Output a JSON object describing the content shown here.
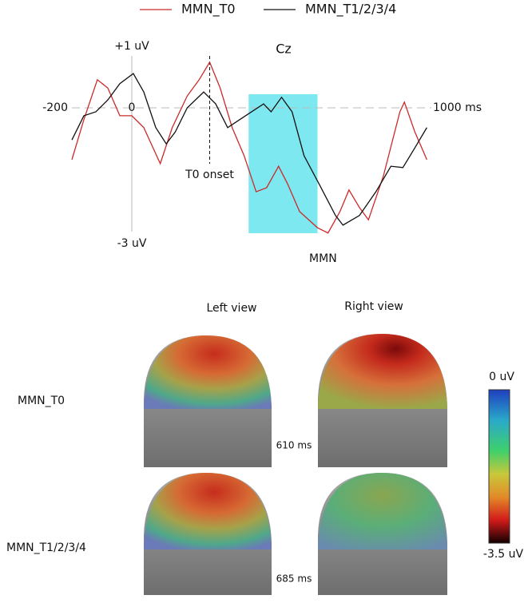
{
  "chart_data": {
    "type": "line",
    "title": "Cz",
    "series": [
      {
        "name": "MMN_T0",
        "color": "#cc2a2a",
        "x": [
          -200,
          -160,
          -115,
          -80,
          -40,
          0,
          40,
          95,
          135,
          185,
          225,
          260,
          295,
          335,
          375,
          415,
          450,
          490,
          520,
          560,
          620,
          655,
          695,
          725,
          760,
          790,
          840,
          895,
          910,
          945,
          985
        ],
        "values": [
          -1.18,
          -0.27,
          0.64,
          0.45,
          -0.18,
          -0.18,
          -0.45,
          -1.27,
          -0.45,
          0.27,
          0.64,
          1.04,
          0.45,
          -0.45,
          -1.09,
          -1.91,
          -1.82,
          -1.33,
          -1.73,
          -2.36,
          -2.73,
          -2.85,
          -2.36,
          -1.87,
          -2.27,
          -2.55,
          -1.55,
          -0.09,
          0.13,
          -0.55,
          -1.18
        ]
      },
      {
        "name": "MMN_T1/2/3/4",
        "color": "#111111",
        "x": [
          -200,
          -160,
          -120,
          -80,
          -40,
          5,
          40,
          80,
          115,
          145,
          185,
          240,
          280,
          320,
          360,
          400,
          440,
          465,
          500,
          535,
          575,
          625,
          680,
          705,
          760,
          815,
          865,
          905,
          945,
          985
        ],
        "values": [
          -0.73,
          -0.18,
          -0.09,
          0.18,
          0.55,
          0.78,
          0.36,
          -0.45,
          -0.82,
          -0.55,
          0,
          0.36,
          0.09,
          -0.45,
          -0.27,
          -0.09,
          0.09,
          -0.09,
          0.24,
          -0.09,
          -1.09,
          -1.73,
          -2.45,
          -2.67,
          -2.45,
          -1.91,
          -1.33,
          -1.36,
          -0.91,
          -0.45
        ]
      }
    ],
    "xlim": [
      -200,
      1000
    ],
    "ylim": [
      -3,
      1
    ],
    "xticks": [
      {
        "value": -200,
        "label": "-200"
      },
      0,
      {
        "value": 1000,
        "label": "1000 ms"
      }
    ],
    "yticks": [
      {
        "value": 1,
        "label": "+1 uV"
      },
      {
        "value": -3,
        "label": "-3 uV"
      }
    ],
    "onset": {
      "value": 260,
      "label": "T0 onset"
    },
    "window": {
      "range": [
        390,
        620
      ],
      "label": "MMN",
      "color": "#7ee8f0"
    }
  },
  "topomaps": {
    "columns": [
      "Left view",
      "Right view"
    ],
    "rows": [
      "MMN_T0",
      "MMN_T1/2/3/4"
    ],
    "times": [
      "610 ms",
      "685 ms"
    ],
    "colorbar": {
      "top": "0 uV",
      "bottom": "-3.5 uV"
    }
  }
}
